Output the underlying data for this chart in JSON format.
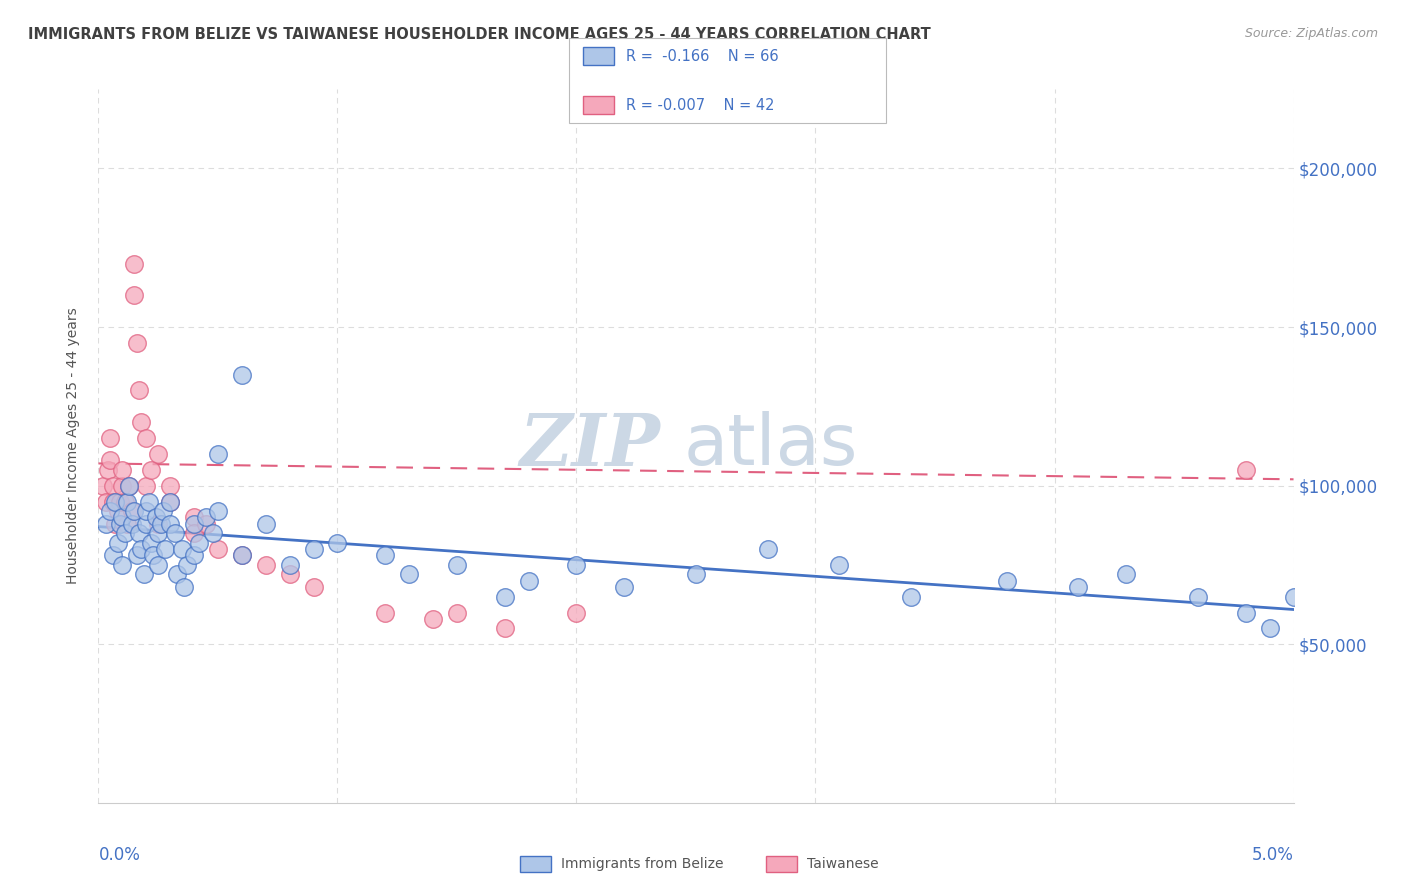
{
  "title": "IMMIGRANTS FROM BELIZE VS TAIWANESE HOUSEHOLDER INCOME AGES 25 - 44 YEARS CORRELATION CHART",
  "source": "Source: ZipAtlas.com",
  "ylabel": "Householder Income Ages 25 - 44 years",
  "legend_label1": "Immigrants from Belize",
  "legend_label2": "Taiwanese",
  "legend_r1": "R =  -0.166",
  "legend_n1": "N = 66",
  "legend_r2": "R = -0.007",
  "legend_n2": "N = 42",
  "color_belize": "#aec6e8",
  "color_taiwanese": "#f5a8bb",
  "color_belize_line": "#4472c4",
  "color_taiwanese_line": "#e06080",
  "color_axis_labels": "#4472c4",
  "color_title": "#404040",
  "ytick_labels": [
    "$50,000",
    "$100,000",
    "$150,000",
    "$200,000"
  ],
  "ytick_values": [
    50000,
    100000,
    150000,
    200000
  ],
  "xmin": 0.0,
  "xmax": 0.05,
  "ymin": 0,
  "ymax": 225000,
  "belize_x": [
    0.0003,
    0.0005,
    0.0006,
    0.0007,
    0.0008,
    0.0009,
    0.001,
    0.001,
    0.0011,
    0.0012,
    0.0013,
    0.0014,
    0.0015,
    0.0016,
    0.0017,
    0.0018,
    0.0019,
    0.002,
    0.002,
    0.0021,
    0.0022,
    0.0023,
    0.0024,
    0.0025,
    0.0025,
    0.0026,
    0.0027,
    0.0028,
    0.003,
    0.003,
    0.0032,
    0.0033,
    0.0035,
    0.0036,
    0.0037,
    0.004,
    0.004,
    0.0042,
    0.0045,
    0.0048,
    0.005,
    0.005,
    0.006,
    0.006,
    0.007,
    0.008,
    0.009,
    0.01,
    0.012,
    0.013,
    0.015,
    0.017,
    0.018,
    0.02,
    0.022,
    0.025,
    0.028,
    0.031,
    0.034,
    0.038,
    0.041,
    0.043,
    0.046,
    0.048,
    0.049,
    0.05
  ],
  "belize_y": [
    88000,
    92000,
    78000,
    95000,
    82000,
    88000,
    75000,
    90000,
    85000,
    95000,
    100000,
    88000,
    92000,
    78000,
    85000,
    80000,
    72000,
    88000,
    92000,
    95000,
    82000,
    78000,
    90000,
    85000,
    75000,
    88000,
    92000,
    80000,
    95000,
    88000,
    85000,
    72000,
    80000,
    68000,
    75000,
    88000,
    78000,
    82000,
    90000,
    85000,
    110000,
    92000,
    135000,
    78000,
    88000,
    75000,
    80000,
    82000,
    78000,
    72000,
    75000,
    65000,
    70000,
    75000,
    68000,
    72000,
    80000,
    75000,
    65000,
    70000,
    68000,
    72000,
    65000,
    60000,
    55000,
    65000
  ],
  "taiwanese_x": [
    0.0002,
    0.0003,
    0.0004,
    0.0005,
    0.0005,
    0.0006,
    0.0006,
    0.0007,
    0.0008,
    0.0009,
    0.001,
    0.001,
    0.0011,
    0.0012,
    0.0013,
    0.0014,
    0.0015,
    0.0015,
    0.0016,
    0.0017,
    0.0018,
    0.002,
    0.002,
    0.0022,
    0.0025,
    0.0025,
    0.003,
    0.003,
    0.004,
    0.004,
    0.0045,
    0.005,
    0.006,
    0.007,
    0.008,
    0.009,
    0.012,
    0.014,
    0.015,
    0.017,
    0.02,
    0.048
  ],
  "taiwanese_y": [
    100000,
    95000,
    105000,
    108000,
    115000,
    100000,
    95000,
    88000,
    92000,
    95000,
    100000,
    105000,
    95000,
    88000,
    100000,
    92000,
    170000,
    160000,
    145000,
    130000,
    120000,
    115000,
    100000,
    105000,
    110000,
    88000,
    95000,
    100000,
    90000,
    85000,
    88000,
    80000,
    78000,
    75000,
    72000,
    68000,
    60000,
    58000,
    60000,
    55000,
    60000,
    105000
  ],
  "watermark_zip": "ZIP",
  "watermark_atlas": "atlas",
  "watermark_color_zip": "#c8d8e8",
  "watermark_color_atlas": "#c8d8e8"
}
